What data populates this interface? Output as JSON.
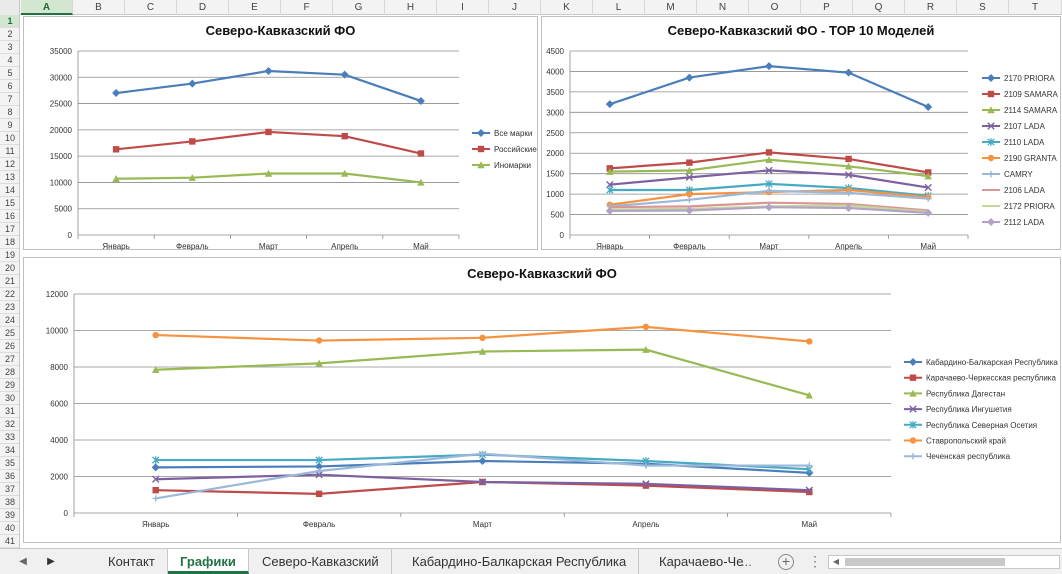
{
  "columns": [
    {
      "label": "A",
      "w": 52,
      "active": true
    },
    {
      "label": "B",
      "w": 52
    },
    {
      "label": "C",
      "w": 52
    },
    {
      "label": "D",
      "w": 52
    },
    {
      "label": "E",
      "w": 52
    },
    {
      "label": "F",
      "w": 52
    },
    {
      "label": "G",
      "w": 52
    },
    {
      "label": "H",
      "w": 52
    },
    {
      "label": "I",
      "w": 52
    },
    {
      "label": "J",
      "w": 52
    },
    {
      "label": "K",
      "w": 52
    },
    {
      "label": "L",
      "w": 52
    },
    {
      "label": "M",
      "w": 52
    },
    {
      "label": "N",
      "w": 52
    },
    {
      "label": "O",
      "w": 52
    },
    {
      "label": "P",
      "w": 52
    },
    {
      "label": "Q",
      "w": 52
    },
    {
      "label": "R",
      "w": 52
    },
    {
      "label": "S",
      "w": 52
    },
    {
      "label": "T",
      "w": 53
    }
  ],
  "rows": [
    "1",
    "2",
    "3",
    "4",
    "5",
    "6",
    "7",
    "8",
    "9",
    "10",
    "11",
    "12",
    "13",
    "14",
    "15",
    "16",
    "17",
    "18",
    "19",
    "20",
    "21",
    "22",
    "23",
    "24",
    "25",
    "26",
    "27",
    "28",
    "29",
    "30",
    "31",
    "32",
    "33",
    "34",
    "35",
    "36",
    "37",
    "38",
    "39",
    "40",
    "41"
  ],
  "sheet_tabs": {
    "items": [
      {
        "label": "Контакт",
        "active": false
      },
      {
        "label": "Графики",
        "active": true
      },
      {
        "label": "Северо-Кавказский",
        "active": false
      },
      {
        "label": "Кабардино-Балкарская Республика",
        "active": false
      },
      {
        "label": "Карачаево-Че",
        "active": false
      }
    ],
    "more": "...",
    "add": "+",
    "kebab": "⋮"
  },
  "colors": {
    "blue": "#4a7ebb",
    "red": "#be4b48",
    "green": "#98b954",
    "purple": "#7d60a0",
    "cyan": "#46aac5",
    "orange": "#f69240",
    "lightblue": "#9bb7d9",
    "pink": "#d99694",
    "lightgreen": "#c3d69b",
    "lavender": "#b3a2c7",
    "accent": "#217346"
  },
  "chart_data": [
    {
      "type": "line",
      "title": "Северо-Кавказский ФО",
      "categories": [
        "Январь",
        "Февраль",
        "Март",
        "Апрель",
        "Май"
      ],
      "ylim": [
        0,
        35000
      ],
      "yticks": [
        0,
        5000,
        10000,
        15000,
        20000,
        25000,
        30000,
        35000
      ],
      "grid": true,
      "legend": "right",
      "series": [
        {
          "name": "Все марки",
          "color": "#4a7ebb",
          "marker": "diamond",
          "values": [
            27000,
            28800,
            31200,
            30500,
            25500
          ]
        },
        {
          "name": "Российские",
          "color": "#be4b48",
          "marker": "square",
          "values": [
            16300,
            17800,
            19600,
            18800,
            15500
          ]
        },
        {
          "name": "Иномарки",
          "color": "#98b954",
          "marker": "triangle",
          "values": [
            10700,
            10900,
            11700,
            11700,
            10000
          ]
        }
      ]
    },
    {
      "type": "line",
      "title": "Северо-Кавказский ФО - TOP 10 Моделей",
      "categories": [
        "Январь",
        "Февраль",
        "Март",
        "Апрель",
        "Май"
      ],
      "ylim": [
        0,
        4500
      ],
      "yticks": [
        0,
        500,
        1000,
        1500,
        2000,
        2500,
        3000,
        3500,
        4000,
        4500
      ],
      "grid": true,
      "legend": "right",
      "series": [
        {
          "name": "2170 PRIORA",
          "color": "#4a7ebb",
          "marker": "diamond",
          "values": [
            3200,
            3850,
            4130,
            3970,
            3130
          ]
        },
        {
          "name": "2109 SAMARA",
          "color": "#be4b48",
          "marker": "square",
          "values": [
            1630,
            1770,
            2020,
            1860,
            1530
          ]
        },
        {
          "name": "2114 SAMARA",
          "color": "#98b954",
          "marker": "triangle",
          "values": [
            1550,
            1580,
            1840,
            1680,
            1440
          ]
        },
        {
          "name": "2107 LADA",
          "color": "#7d60a0",
          "marker": "x",
          "values": [
            1230,
            1410,
            1580,
            1470,
            1160
          ]
        },
        {
          "name": "2110 LADA",
          "color": "#46aac5",
          "marker": "star",
          "values": [
            1100,
            1100,
            1250,
            1150,
            960
          ]
        },
        {
          "name": "2190 GRANTA",
          "color": "#f69240",
          "marker": "circle",
          "values": [
            740,
            1000,
            1050,
            1100,
            930
          ]
        },
        {
          "name": "CAMRY",
          "color": "#9bb7d9",
          "marker": "plus",
          "values": [
            700,
            860,
            1080,
            1030,
            890
          ]
        },
        {
          "name": "2106 LADA",
          "color": "#d99694",
          "marker": "none",
          "values": [
            680,
            700,
            790,
            760,
            600
          ]
        },
        {
          "name": "2172 PRIORA",
          "color": "#c3d69b",
          "marker": "none",
          "values": [
            620,
            640,
            700,
            720,
            570
          ]
        },
        {
          "name": "2112 LADA",
          "color": "#b3a2c7",
          "marker": "diamond",
          "values": [
            590,
            600,
            680,
            660,
            540
          ]
        }
      ]
    },
    {
      "type": "line",
      "title": "Северо-Кавказский ФО",
      "categories": [
        "Январь",
        "Февраль",
        "Март",
        "Апрель",
        "Май"
      ],
      "ylim": [
        0,
        12000
      ],
      "yticks": [
        0,
        2000,
        4000,
        6000,
        8000,
        10000,
        12000
      ],
      "grid": true,
      "legend": "right",
      "series": [
        {
          "name": "Кабардино-Балкарская Республика",
          "color": "#4a7ebb",
          "marker": "diamond",
          "values": [
            2500,
            2550,
            2850,
            2700,
            2200
          ]
        },
        {
          "name": "Карачаево-Черкесская республика",
          "color": "#be4b48",
          "marker": "square",
          "values": [
            1250,
            1050,
            1700,
            1500,
            1150
          ]
        },
        {
          "name": "Республика Дагестан",
          "color": "#98b954",
          "marker": "triangle",
          "values": [
            7850,
            8200,
            8850,
            8950,
            6450
          ]
        },
        {
          "name": "Республика Ингушетия",
          "color": "#7d60a0",
          "marker": "x",
          "values": [
            1850,
            2100,
            1700,
            1600,
            1250
          ]
        },
        {
          "name": "Республика Северная Осетия",
          "color": "#46aac5",
          "marker": "star",
          "values": [
            2900,
            2900,
            3200,
            2850,
            2400
          ]
        },
        {
          "name": "Ставропольский край",
          "color": "#f69240",
          "marker": "circle",
          "values": [
            9750,
            9450,
            9600,
            10200,
            9400
          ]
        },
        {
          "name": "Чеченская республика",
          "color": "#9bb7d9",
          "marker": "plus",
          "values": [
            800,
            2300,
            3250,
            2600,
            2600
          ]
        }
      ]
    }
  ]
}
